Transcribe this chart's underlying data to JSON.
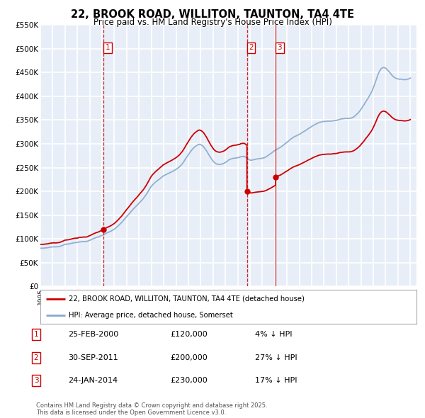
{
  "title": "22, BROOK ROAD, WILLITON, TAUNTON, TA4 4TE",
  "subtitle": "Price paid vs. HM Land Registry's House Price Index (HPI)",
  "xmin": 1995.0,
  "xmax": 2025.5,
  "ymin": 0,
  "ymax": 550000,
  "yticks": [
    0,
    50000,
    100000,
    150000,
    200000,
    250000,
    300000,
    350000,
    400000,
    450000,
    500000,
    550000
  ],
  "ytick_labels": [
    "£0",
    "£50K",
    "£100K",
    "£150K",
    "£200K",
    "£250K",
    "£300K",
    "£350K",
    "£400K",
    "£450K",
    "£500K",
    "£550K"
  ],
  "purchase_color": "#cc0000",
  "hpi_color": "#88aacc",
  "vline_color": "#cc0000",
  "plot_bg_color": "#e8eef8",
  "grid_color": "#ffffff",
  "purchases": [
    {
      "date": 2000.14,
      "price": 120000,
      "label": "1"
    },
    {
      "date": 2011.75,
      "price": 200000,
      "label": "2"
    },
    {
      "date": 2014.07,
      "price": 230000,
      "label": "3"
    }
  ],
  "legend_entries": [
    "22, BROOK ROAD, WILLITON, TAUNTON, TA4 4TE (detached house)",
    "HPI: Average price, detached house, Somerset"
  ],
  "table_rows": [
    {
      "num": "1",
      "date": "25-FEB-2000",
      "price": "£120,000",
      "hpi": "4% ↓ HPI"
    },
    {
      "num": "2",
      "date": "30-SEP-2011",
      "price": "£200,000",
      "hpi": "27% ↓ HPI"
    },
    {
      "num": "3",
      "date": "24-JAN-2014",
      "price": "£230,000",
      "hpi": "17% ↓ HPI"
    }
  ],
  "footer": "Contains HM Land Registry data © Crown copyright and database right 2025.\nThis data is licensed under the Open Government Licence v3.0."
}
